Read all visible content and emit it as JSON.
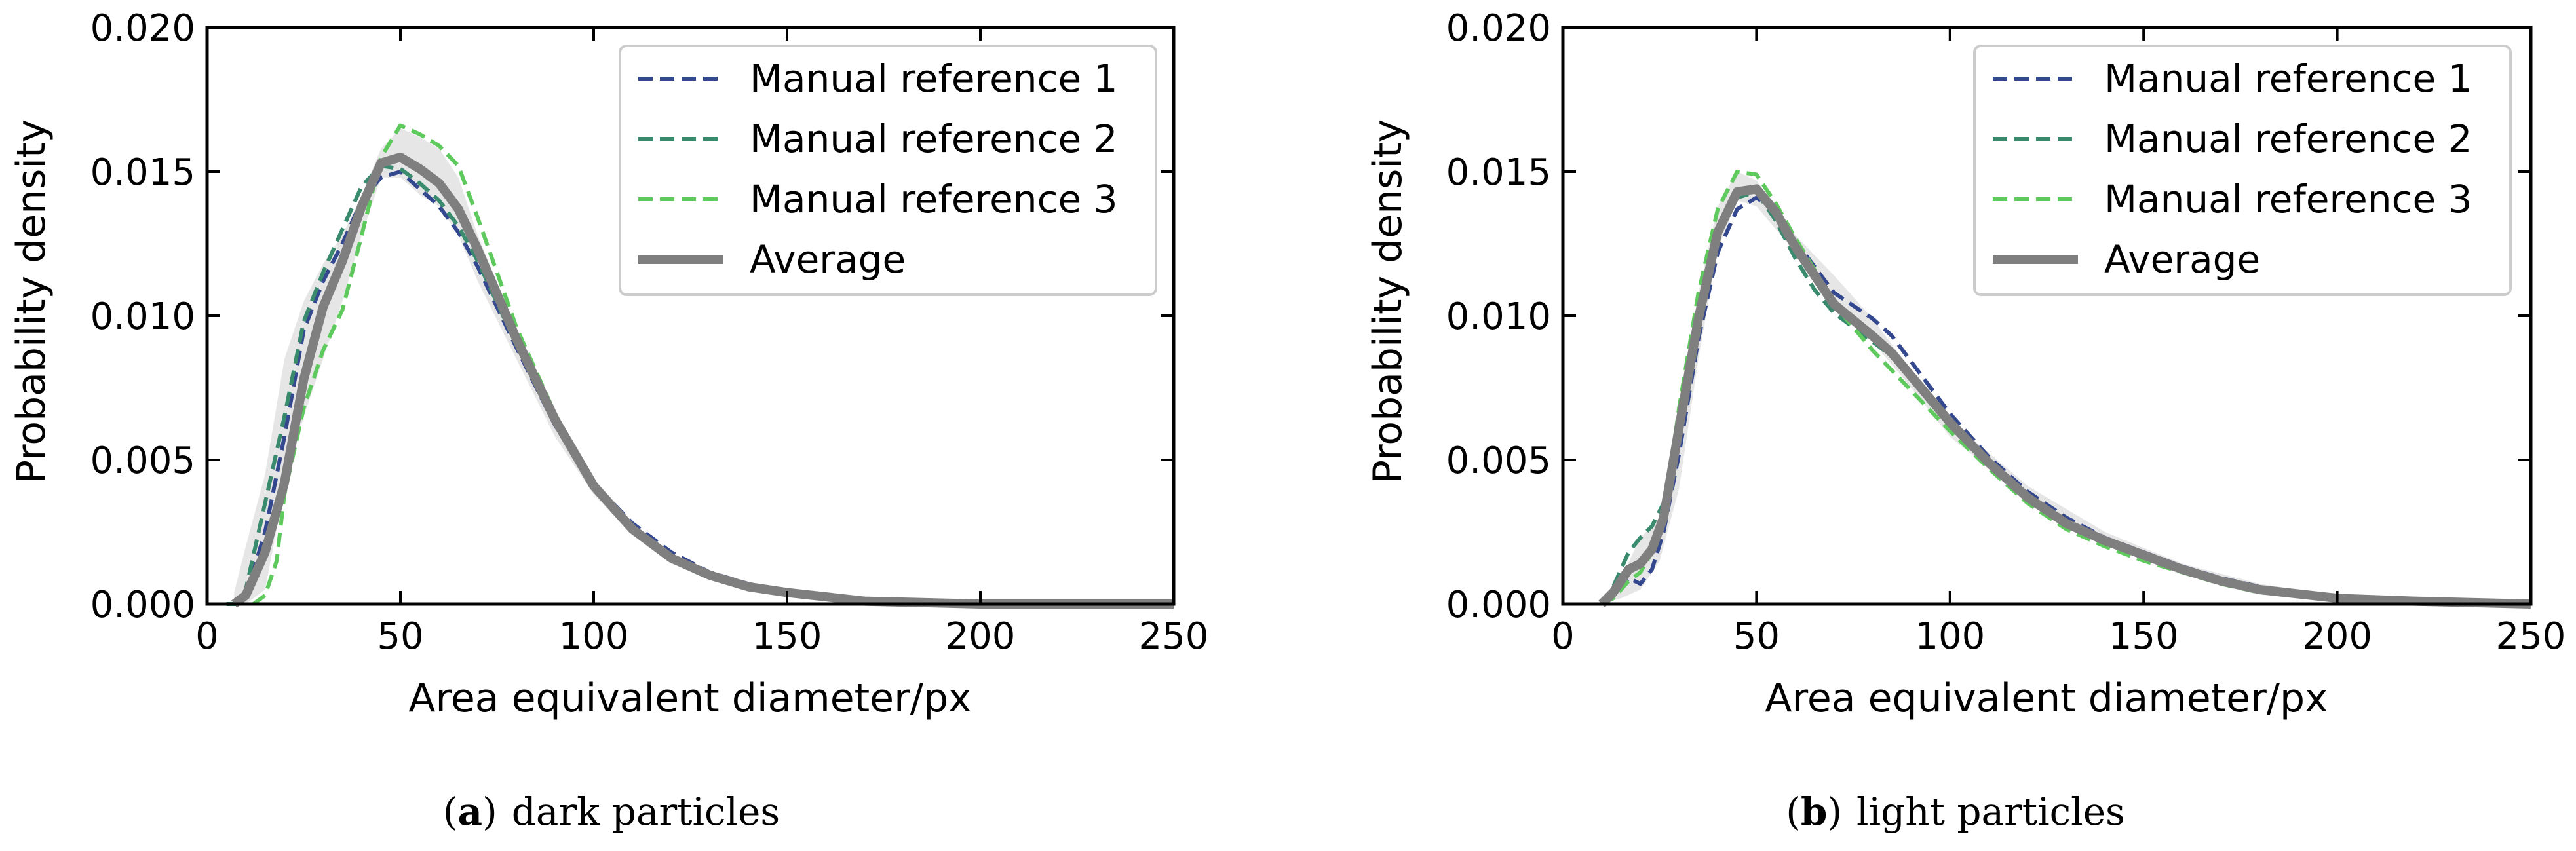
{
  "chart_data": [
    {
      "type": "line",
      "caption": {
        "open": "(",
        "tag": "a",
        "close": ")",
        "text": "dark particles"
      },
      "xlabel": "Area equivalent diameter/px",
      "ylabel": "Probability density",
      "xlim": [
        0,
        250
      ],
      "ylim": [
        0,
        0.02
      ],
      "xticks": [
        "0",
        "50",
        "100",
        "150",
        "200",
        "250"
      ],
      "yticks": [
        "0.000",
        "0.005",
        "0.010",
        "0.015",
        "0.020"
      ],
      "grid": false,
      "legend_position": "upper-right",
      "band": {
        "x": [
          7,
          10,
          15,
          20,
          25,
          30,
          35,
          40,
          45,
          50,
          55,
          60,
          65,
          70,
          80,
          90,
          100,
          110,
          120,
          135,
          150
        ],
        "lower": [
          0.0,
          0.0,
          0.0005,
          0.004,
          0.0065,
          0.0085,
          0.0105,
          0.0128,
          0.0148,
          0.0148,
          0.0142,
          0.0138,
          0.0128,
          0.0112,
          0.0085,
          0.0058,
          0.0038,
          0.0024,
          0.0014,
          0.0007,
          0.0003
        ],
        "upper": [
          0.0004,
          0.002,
          0.0045,
          0.0085,
          0.0105,
          0.0118,
          0.0128,
          0.0142,
          0.0158,
          0.0165,
          0.0162,
          0.0158,
          0.0148,
          0.0128,
          0.0095,
          0.0065,
          0.0043,
          0.0028,
          0.0017,
          0.0009,
          0.0004
        ]
      },
      "series": [
        {
          "name": "Manual reference 1",
          "color": "#34488f",
          "dash": "dashed",
          "x": [
            5,
            8,
            10,
            15,
            20,
            25,
            30,
            35,
            40,
            45,
            50,
            55,
            60,
            65,
            70,
            80,
            90,
            100,
            110,
            120,
            130,
            140,
            150,
            170,
            200,
            250
          ],
          "y": [
            0.0,
            0.0,
            0.0003,
            0.0025,
            0.0058,
            0.0095,
            0.0112,
            0.0125,
            0.014,
            0.0148,
            0.015,
            0.0144,
            0.0138,
            0.0129,
            0.0117,
            0.0089,
            0.0062,
            0.0042,
            0.0028,
            0.0018,
            0.0011,
            0.0007,
            0.0004,
            0.0001,
            0.0,
            0.0
          ]
        },
        {
          "name": "Manual reference 2",
          "color": "#3a8a6e",
          "dash": "dashed",
          "x": [
            5,
            8,
            10,
            15,
            20,
            25,
            30,
            35,
            40,
            45,
            50,
            55,
            60,
            65,
            70,
            80,
            90,
            100,
            110,
            120,
            130,
            140,
            150,
            170,
            200,
            250
          ],
          "y": [
            0.0,
            0.0,
            0.0005,
            0.0035,
            0.0065,
            0.0098,
            0.0115,
            0.013,
            0.0145,
            0.0152,
            0.0151,
            0.0146,
            0.014,
            0.0131,
            0.0119,
            0.009,
            0.0063,
            0.0041,
            0.0026,
            0.0016,
            0.001,
            0.0006,
            0.0004,
            0.0001,
            0.0,
            0.0
          ]
        },
        {
          "name": "Manual reference 3",
          "color": "#5ec95c",
          "dash": "dashed",
          "x": [
            12,
            15,
            18,
            20,
            25,
            30,
            35,
            40,
            45,
            50,
            55,
            60,
            65,
            70,
            80,
            90,
            100,
            110,
            120,
            130,
            140,
            150,
            170,
            200,
            250
          ],
          "y": [
            0.0,
            0.0003,
            0.0015,
            0.0038,
            0.0068,
            0.0088,
            0.0102,
            0.0128,
            0.0155,
            0.0166,
            0.0163,
            0.0159,
            0.0152,
            0.0134,
            0.0096,
            0.0066,
            0.0041,
            0.0025,
            0.0015,
            0.0009,
            0.0006,
            0.0004,
            0.0001,
            0.0,
            0.0
          ]
        },
        {
          "name": "Average",
          "color": "#7f7f7f",
          "dash": "solid",
          "x": [
            7,
            10,
            15,
            20,
            25,
            30,
            35,
            40,
            45,
            50,
            55,
            60,
            65,
            70,
            80,
            90,
            100,
            110,
            120,
            130,
            140,
            150,
            170,
            200,
            250
          ],
          "y": [
            0.0,
            0.0003,
            0.0018,
            0.0042,
            0.0078,
            0.0103,
            0.0119,
            0.0138,
            0.0153,
            0.0155,
            0.0151,
            0.0146,
            0.0137,
            0.0123,
            0.0092,
            0.0064,
            0.0041,
            0.0026,
            0.0016,
            0.001,
            0.0006,
            0.0004,
            0.0001,
            0.0,
            0.0
          ]
        }
      ]
    },
    {
      "type": "line",
      "caption": {
        "open": "(",
        "tag": "b",
        "close": ")",
        "text": "light particles"
      },
      "xlabel": "Area equivalent diameter/px",
      "ylabel": "Probability density",
      "xlim": [
        0,
        250
      ],
      "ylim": [
        0,
        0.02
      ],
      "xticks": [
        "0",
        "50",
        "100",
        "150",
        "200",
        "250"
      ],
      "yticks": [
        "0.000",
        "0.005",
        "0.010",
        "0.015",
        "0.020"
      ],
      "grid": false,
      "legend_position": "upper-right",
      "band": {
        "x": [
          10,
          15,
          20,
          25,
          30,
          35,
          40,
          45,
          50,
          55,
          60,
          70,
          80,
          90,
          100,
          120,
          140,
          160,
          180,
          200,
          230,
          250
        ],
        "lower": [
          0.0,
          0.0002,
          0.0005,
          0.0015,
          0.004,
          0.0085,
          0.0123,
          0.014,
          0.0138,
          0.013,
          0.0122,
          0.0106,
          0.0091,
          0.0075,
          0.0058,
          0.0036,
          0.0021,
          0.0012,
          0.0006,
          0.0002,
          0.0001,
          0.0
        ],
        "upper": [
          0.0001,
          0.0009,
          0.0023,
          0.003,
          0.0065,
          0.0108,
          0.0138,
          0.015,
          0.0147,
          0.0138,
          0.0128,
          0.0114,
          0.0099,
          0.0081,
          0.0064,
          0.0041,
          0.0025,
          0.0014,
          0.0007,
          0.0003,
          0.0001,
          0.0
        ]
      },
      "series": [
        {
          "name": "Manual reference 1",
          "color": "#34488f",
          "dash": "dashed",
          "x": [
            10,
            13,
            17,
            20,
            23,
            26,
            30,
            35,
            40,
            45,
            50,
            55,
            60,
            65,
            70,
            80,
            85,
            90,
            100,
            110,
            120,
            130,
            140,
            150,
            160,
            170,
            180,
            200,
            220,
            250
          ],
          "y": [
            0.0,
            0.0003,
            0.0009,
            0.0007,
            0.0012,
            0.0025,
            0.0052,
            0.0092,
            0.0122,
            0.0137,
            0.0141,
            0.0136,
            0.0126,
            0.0117,
            0.0108,
            0.0099,
            0.0093,
            0.0084,
            0.0066,
            0.0051,
            0.0039,
            0.003,
            0.0023,
            0.0018,
            0.0013,
            0.0009,
            0.0006,
            0.0002,
            0.0001,
            0.0
          ]
        },
        {
          "name": "Manual reference 2",
          "color": "#3a8a6e",
          "dash": "dashed",
          "x": [
            10,
            13,
            17,
            20,
            23,
            26,
            30,
            35,
            40,
            45,
            50,
            55,
            60,
            65,
            70,
            80,
            85,
            90,
            100,
            110,
            120,
            130,
            140,
            150,
            160,
            170,
            180,
            200,
            220,
            250
          ],
          "y": [
            0.0,
            0.0006,
            0.0018,
            0.0023,
            0.0027,
            0.0035,
            0.0062,
            0.0098,
            0.0128,
            0.0141,
            0.0143,
            0.0133,
            0.012,
            0.0109,
            0.0101,
            0.0091,
            0.0086,
            0.0078,
            0.0063,
            0.0049,
            0.0037,
            0.0028,
            0.0022,
            0.0017,
            0.0012,
            0.0008,
            0.0005,
            0.0002,
            0.0001,
            0.0
          ]
        },
        {
          "name": "Manual reference 3",
          "color": "#5ec95c",
          "dash": "dashed",
          "x": [
            10,
            13,
            17,
            20,
            23,
            26,
            30,
            35,
            40,
            45,
            50,
            55,
            60,
            65,
            70,
            80,
            85,
            90,
            100,
            110,
            120,
            130,
            140,
            150,
            160,
            170,
            180,
            200,
            220,
            250
          ],
          "y": [
            0.0,
            0.0002,
            0.0008,
            0.0011,
            0.0018,
            0.003,
            0.0068,
            0.0108,
            0.0137,
            0.015,
            0.0149,
            0.0139,
            0.0127,
            0.0116,
            0.0104,
            0.0088,
            0.0081,
            0.0074,
            0.006,
            0.0047,
            0.0035,
            0.0026,
            0.002,
            0.0015,
            0.0011,
            0.0007,
            0.0004,
            0.0002,
            0.0001,
            0.0
          ]
        },
        {
          "name": "Average",
          "color": "#7f7f7f",
          "dash": "solid",
          "x": [
            10,
            13,
            17,
            20,
            23,
            26,
            30,
            35,
            40,
            45,
            50,
            55,
            60,
            65,
            70,
            80,
            85,
            90,
            100,
            110,
            120,
            130,
            140,
            150,
            160,
            170,
            180,
            200,
            220,
            250
          ],
          "y": [
            0.0,
            0.0004,
            0.0012,
            0.0014,
            0.0019,
            0.003,
            0.0061,
            0.0099,
            0.0129,
            0.0143,
            0.0144,
            0.0136,
            0.0124,
            0.0114,
            0.0104,
            0.0093,
            0.0087,
            0.0079,
            0.0063,
            0.0049,
            0.0037,
            0.0028,
            0.0022,
            0.0017,
            0.0012,
            0.0008,
            0.0005,
            0.0002,
            0.0001,
            0.0
          ]
        }
      ]
    }
  ]
}
